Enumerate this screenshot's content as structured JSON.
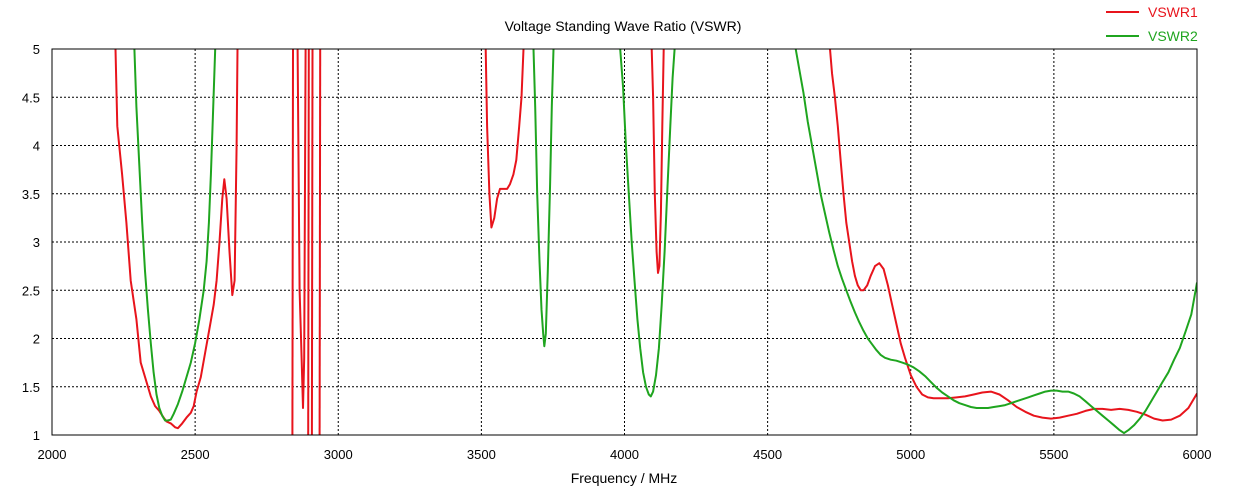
{
  "chart_data": {
    "type": "line",
    "title": "Voltage Standing Wave Ratio (VSWR)",
    "xlabel": "Frequency / MHz",
    "ylabel": "",
    "xlim": [
      2000,
      6000
    ],
    "ylim": [
      1,
      5
    ],
    "x_ticks": [
      "2000",
      "2500",
      "3000",
      "3500",
      "4000",
      "4500",
      "5000",
      "5500",
      "6000"
    ],
    "y_ticks": [
      "1",
      "1.5",
      "2",
      "2.5",
      "3",
      "3.5",
      "4",
      "4.5",
      "5"
    ],
    "grid": true,
    "legend_position": "top-right",
    "series": [
      {
        "name": "VSWR1",
        "color": "#e8141c",
        "segments": [
          [
            [
              2222,
              5.0
            ],
            [
              2228,
              4.2
            ],
            [
              2245,
              3.7
            ],
            [
              2260,
              3.2
            ],
            [
              2275,
              2.6
            ],
            [
              2295,
              2.2
            ],
            [
              2310,
              1.75
            ],
            [
              2330,
              1.55
            ],
            [
              2345,
              1.4
            ],
            [
              2360,
              1.3
            ],
            [
              2375,
              1.25
            ],
            [
              2390,
              1.18
            ],
            [
              2400,
              1.14
            ],
            [
              2415,
              1.12
            ],
            [
              2430,
              1.08
            ],
            [
              2440,
              1.07
            ],
            [
              2455,
              1.12
            ],
            [
              2470,
              1.18
            ],
            [
              2485,
              1.23
            ],
            [
              2495,
              1.3
            ],
            [
              2505,
              1.45
            ],
            [
              2520,
              1.6
            ],
            [
              2535,
              1.85
            ],
            [
              2550,
              2.1
            ],
            [
              2565,
              2.35
            ],
            [
              2575,
              2.6
            ],
            [
              2585,
              3.0
            ],
            [
              2595,
              3.45
            ],
            [
              2602,
              3.65
            ],
            [
              2610,
              3.45
            ],
            [
              2620,
              2.9
            ],
            [
              2630,
              2.45
            ],
            [
              2638,
              2.6
            ],
            [
              2645,
              4.0
            ],
            [
              2648,
              5.0
            ]
          ],
          [
            [
              2840,
              1.0
            ],
            [
              2842,
              5.0
            ]
          ],
          [
            [
              2858,
              5.0
            ],
            [
              2865,
              2.5
            ],
            [
              2872,
              1.8
            ],
            [
              2877,
              1.28
            ],
            [
              2881,
              1.8
            ],
            [
              2886,
              5.0
            ]
          ],
          [
            [
              2895,
              1.0
            ],
            [
              2897,
              5.0
            ]
          ],
          [
            [
              2908,
              1.0
            ],
            [
              2910,
              5.0
            ]
          ],
          [
            [
              2935,
              1.0
            ],
            [
              2937,
              5.0
            ]
          ],
          [
            [
              3515,
              5.0
            ],
            [
              3520,
              4.2
            ],
            [
              3528,
              3.5
            ],
            [
              3535,
              3.15
            ],
            [
              3545,
              3.25
            ],
            [
              3555,
              3.45
            ],
            [
              3565,
              3.55
            ],
            [
              3578,
              3.55
            ],
            [
              3590,
              3.55
            ],
            [
              3600,
              3.6
            ],
            [
              3612,
              3.7
            ],
            [
              3622,
              3.85
            ],
            [
              3632,
              4.2
            ],
            [
              3640,
              4.5
            ],
            [
              3647,
              5.0
            ]
          ],
          [
            [
              4095,
              5.0
            ],
            [
              4100,
              4.5
            ],
            [
              4106,
              3.5
            ],
            [
              4112,
              2.9
            ],
            [
              4117,
              2.68
            ],
            [
              4122,
              2.75
            ],
            [
              4127,
              3.3
            ],
            [
              4132,
              4.2
            ],
            [
              4137,
              5.0
            ]
          ],
          [
            [
              4718,
              5.0
            ],
            [
              4725,
              4.75
            ],
            [
              4735,
              4.5
            ],
            [
              4745,
              4.2
            ],
            [
              4755,
              3.85
            ],
            [
              4765,
              3.5
            ],
            [
              4775,
              3.2
            ],
            [
              4785,
              3.0
            ],
            [
              4795,
              2.8
            ],
            [
              4805,
              2.65
            ],
            [
              4815,
              2.55
            ],
            [
              4825,
              2.5
            ],
            [
              4835,
              2.5
            ],
            [
              4848,
              2.55
            ],
            [
              4860,
              2.65
            ],
            [
              4875,
              2.75
            ],
            [
              4890,
              2.78
            ],
            [
              4905,
              2.72
            ],
            [
              4920,
              2.55
            ],
            [
              4935,
              2.35
            ],
            [
              4950,
              2.15
            ],
            [
              4965,
              1.95
            ],
            [
              4980,
              1.8
            ],
            [
              5000,
              1.62
            ],
            [
              5020,
              1.5
            ],
            [
              5040,
              1.42
            ],
            [
              5060,
              1.39
            ],
            [
              5080,
              1.38
            ],
            [
              5100,
              1.38
            ],
            [
              5130,
              1.38
            ],
            [
              5160,
              1.39
            ],
            [
              5190,
              1.4
            ],
            [
              5220,
              1.42
            ],
            [
              5250,
              1.44
            ],
            [
              5280,
              1.45
            ],
            [
              5310,
              1.42
            ],
            [
              5340,
              1.36
            ],
            [
              5370,
              1.29
            ],
            [
              5400,
              1.24
            ],
            [
              5430,
              1.2
            ],
            [
              5460,
              1.18
            ],
            [
              5490,
              1.17
            ],
            [
              5520,
              1.18
            ],
            [
              5550,
              1.2
            ],
            [
              5580,
              1.22
            ],
            [
              5610,
              1.25
            ],
            [
              5640,
              1.27
            ],
            [
              5670,
              1.27
            ],
            [
              5700,
              1.26
            ],
            [
              5730,
              1.27
            ],
            [
              5760,
              1.26
            ],
            [
              5790,
              1.24
            ],
            [
              5820,
              1.21
            ],
            [
              5850,
              1.17
            ],
            [
              5880,
              1.15
            ],
            [
              5910,
              1.16
            ],
            [
              5940,
              1.2
            ],
            [
              5970,
              1.28
            ],
            [
              6000,
              1.43
            ]
          ]
        ]
      },
      {
        "name": "VSWR2",
        "color": "#1fa51f",
        "segments": [
          [
            [
              2288,
              5.0
            ],
            [
              2295,
              4.4
            ],
            [
              2305,
              3.8
            ],
            [
              2315,
              3.2
            ],
            [
              2325,
              2.7
            ],
            [
              2335,
              2.3
            ],
            [
              2345,
              1.95
            ],
            [
              2355,
              1.65
            ],
            [
              2365,
              1.42
            ],
            [
              2375,
              1.28
            ],
            [
              2385,
              1.2
            ],
            [
              2395,
              1.15
            ],
            [
              2405,
              1.15
            ],
            [
              2415,
              1.16
            ],
            [
              2425,
              1.22
            ],
            [
              2440,
              1.32
            ],
            [
              2455,
              1.45
            ],
            [
              2470,
              1.6
            ],
            [
              2485,
              1.75
            ],
            [
              2500,
              1.95
            ],
            [
              2515,
              2.2
            ],
            [
              2530,
              2.5
            ],
            [
              2540,
              2.8
            ],
            [
              2548,
              3.2
            ],
            [
              2555,
              3.7
            ],
            [
              2562,
              4.3
            ],
            [
              2570,
              5.0
            ]
          ],
          [
            [
              3682,
              5.0
            ],
            [
              3688,
              4.4
            ],
            [
              3695,
              3.5
            ],
            [
              3703,
              2.8
            ],
            [
              3710,
              2.3
            ],
            [
              3716,
              2.05
            ],
            [
              3720,
              1.92
            ],
            [
              3725,
              2.05
            ],
            [
              3732,
              2.7
            ],
            [
              3740,
              3.6
            ],
            [
              3746,
              4.4
            ],
            [
              3752,
              5.0
            ]
          ],
          [
            [
              3985,
              5.0
            ],
            [
              3995,
              4.6
            ],
            [
              4005,
              4.0
            ],
            [
              4015,
              3.5
            ],
            [
              4025,
              3.0
            ],
            [
              4035,
              2.6
            ],
            [
              4045,
              2.2
            ],
            [
              4055,
              1.9
            ],
            [
              4065,
              1.65
            ],
            [
              4075,
              1.5
            ],
            [
              4085,
              1.42
            ],
            [
              4092,
              1.4
            ],
            [
              4100,
              1.45
            ],
            [
              4110,
              1.62
            ],
            [
              4120,
              1.9
            ],
            [
              4130,
              2.35
            ],
            [
              4140,
              2.9
            ],
            [
              4150,
              3.55
            ],
            [
              4160,
              4.2
            ],
            [
              4168,
              4.7
            ],
            [
              4175,
              5.0
            ]
          ],
          [
            [
              4598,
              5.0
            ],
            [
              4610,
              4.8
            ],
            [
              4625,
              4.55
            ],
            [
              4640,
              4.25
            ],
            [
              4655,
              4.0
            ],
            [
              4670,
              3.75
            ],
            [
              4685,
              3.5
            ],
            [
              4700,
              3.3
            ],
            [
              4715,
              3.1
            ],
            [
              4730,
              2.92
            ],
            [
              4745,
              2.75
            ],
            [
              4760,
              2.62
            ],
            [
              4775,
              2.5
            ],
            [
              4790,
              2.38
            ],
            [
              4805,
              2.27
            ],
            [
              4820,
              2.17
            ],
            [
              4835,
              2.08
            ],
            [
              4850,
              2.0
            ],
            [
              4865,
              1.94
            ],
            [
              4880,
              1.88
            ],
            [
              4895,
              1.83
            ],
            [
              4910,
              1.8
            ],
            [
              4930,
              1.78
            ],
            [
              4950,
              1.77
            ],
            [
              4970,
              1.75
            ],
            [
              4990,
              1.73
            ],
            [
              5010,
              1.7
            ],
            [
              5030,
              1.66
            ],
            [
              5050,
              1.61
            ],
            [
              5070,
              1.55
            ],
            [
              5090,
              1.49
            ],
            [
              5110,
              1.44
            ],
            [
              5130,
              1.4
            ],
            [
              5150,
              1.36
            ],
            [
              5170,
              1.33
            ],
            [
              5190,
              1.31
            ],
            [
              5210,
              1.29
            ],
            [
              5230,
              1.28
            ],
            [
              5250,
              1.28
            ],
            [
              5270,
              1.28
            ],
            [
              5290,
              1.29
            ],
            [
              5310,
              1.3
            ],
            [
              5330,
              1.31
            ],
            [
              5350,
              1.33
            ],
            [
              5370,
              1.35
            ],
            [
              5390,
              1.37
            ],
            [
              5410,
              1.39
            ],
            [
              5430,
              1.41
            ],
            [
              5450,
              1.43
            ],
            [
              5470,
              1.45
            ],
            [
              5490,
              1.46
            ],
            [
              5510,
              1.46
            ],
            [
              5530,
              1.45
            ],
            [
              5550,
              1.45
            ],
            [
              5570,
              1.43
            ],
            [
              5590,
              1.4
            ],
            [
              5610,
              1.35
            ],
            [
              5630,
              1.3
            ],
            [
              5650,
              1.25
            ],
            [
              5670,
              1.2
            ],
            [
              5690,
              1.15
            ],
            [
              5710,
              1.1
            ],
            [
              5730,
              1.05
            ],
            [
              5745,
              1.02
            ],
            [
              5760,
              1.05
            ],
            [
              5780,
              1.1
            ],
            [
              5800,
              1.17
            ],
            [
              5820,
              1.25
            ],
            [
              5840,
              1.35
            ],
            [
              5860,
              1.45
            ],
            [
              5880,
              1.55
            ],
            [
              5900,
              1.65
            ],
            [
              5920,
              1.78
            ],
            [
              5940,
              1.9
            ],
            [
              5960,
              2.07
            ],
            [
              5980,
              2.25
            ],
            [
              6000,
              2.58
            ]
          ]
        ]
      }
    ]
  }
}
